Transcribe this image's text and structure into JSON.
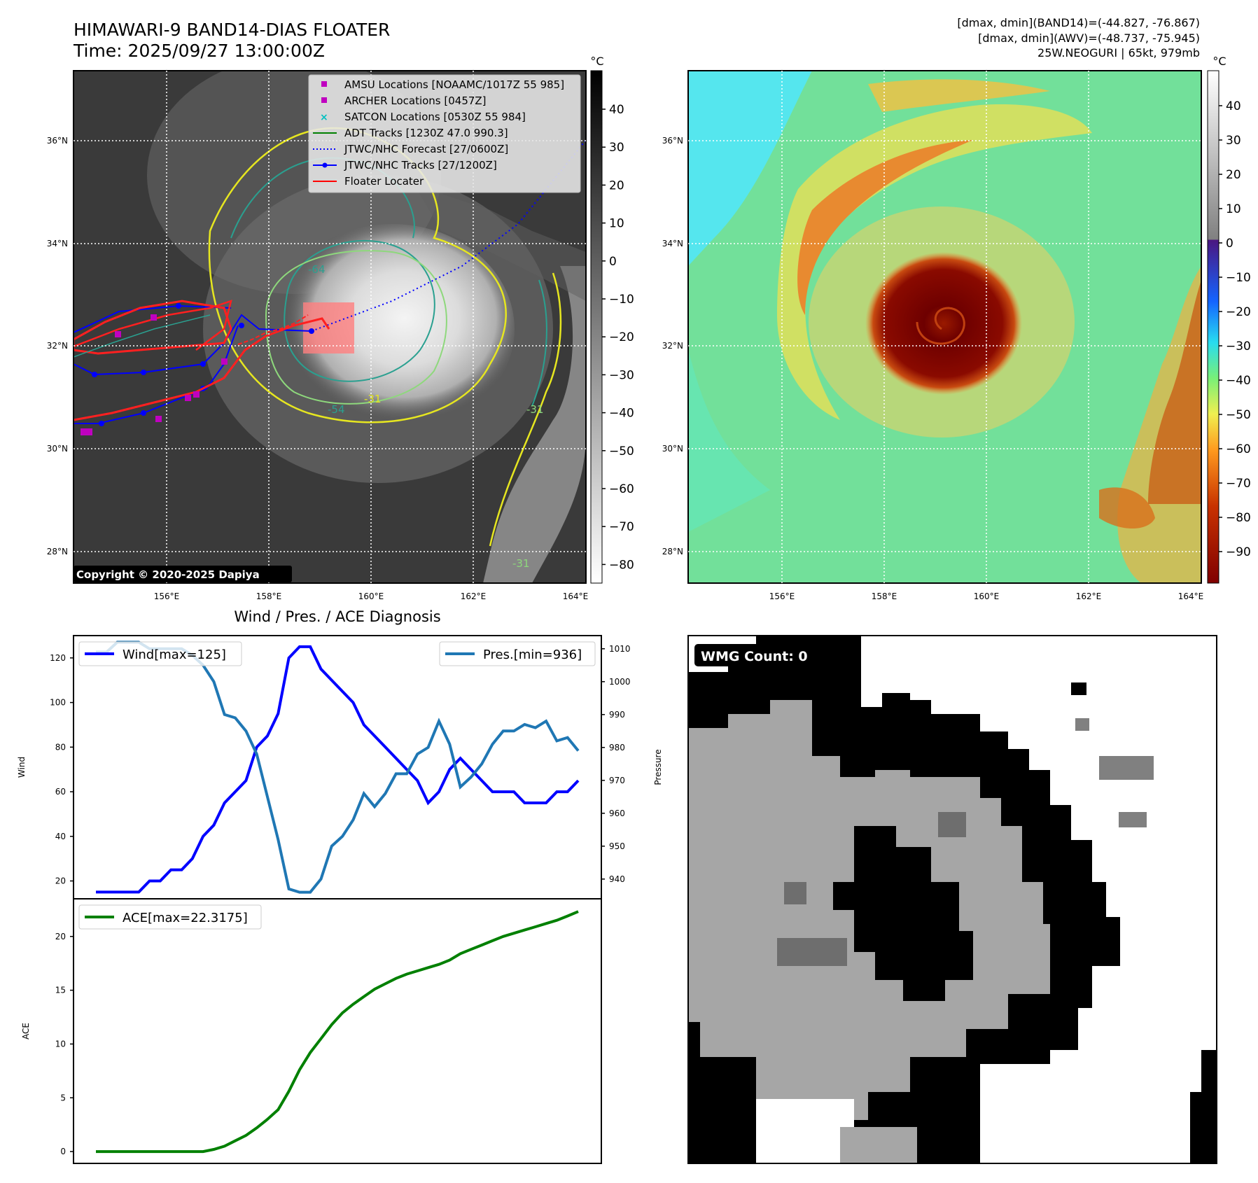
{
  "header": {
    "title": "HIMAWARI-9 BAND14-DIAS FLOATER",
    "time": "Time: 2025/09/27 13:00:00Z",
    "stats_line1": "[dmax, dmin](BAND14)=(-44.827, -76.867)",
    "stats_line2": "[dmax, dmin](AWV)=(-48.737, -75.945)",
    "stats_line3": "25W.NEOGURI | 65kt, 979mb"
  },
  "map": {
    "lon_ticks": [
      "156°E",
      "158°E",
      "160°E",
      "162°E",
      "164°E"
    ],
    "lat_ticks": [
      "36°N",
      "34°N",
      "32°N",
      "30°N",
      "28°N"
    ],
    "copyright": "Copyright © 2020-2025 Dapiya",
    "legend": [
      {
        "label": "AMSU Locations [NOAAMC/1017Z 55 985]",
        "color": "#c000c0",
        "marker": "square"
      },
      {
        "label": "ARCHER Locations [0457Z]",
        "color": "#c000c0",
        "marker": "square"
      },
      {
        "label": "SATCON Locations [0530Z 55 984]",
        "color": "#00c0c0",
        "marker": "x"
      },
      {
        "label": "ADT Tracks [1230Z 47.0 990.3]",
        "color": "#008000",
        "marker": "line"
      },
      {
        "label": "JTWC/NHC Forecast [27/0600Z]",
        "color": "#0000ff",
        "marker": "dotted"
      },
      {
        "label": "JTWC/NHC Tracks [27/1200Z]",
        "color": "#0000ff",
        "marker": "line-dot"
      },
      {
        "label": "Floater Locater",
        "color": "#ff0000",
        "marker": "line"
      }
    ],
    "contour_labels": [
      "-64",
      "-54",
      "-31",
      "-31",
      "-31"
    ]
  },
  "colorbars": {
    "unit": "°C",
    "left_ticks": [
      "40",
      "30",
      "20",
      "10",
      "0",
      "−10",
      "−20",
      "−30",
      "−40",
      "−50",
      "−60",
      "−70",
      "−80"
    ],
    "right_ticks": [
      "40",
      "30",
      "20",
      "10",
      "0",
      "−10",
      "−20",
      "−30",
      "−40",
      "−50",
      "−60",
      "−70",
      "−80",
      "−90"
    ]
  },
  "wmg": {
    "label": "WMG Count: 0"
  },
  "chart_data": [
    {
      "type": "line",
      "title": "Wind / Pres. / ACE Diagnosis",
      "ylabel": "Wind",
      "y2label": "Pressure",
      "ylim": [
        12,
        130
      ],
      "y2lim": [
        934,
        1014
      ],
      "yticks": [
        "20",
        "40",
        "60",
        "80",
        "100",
        "120"
      ],
      "y2ticks": [
        "940",
        "950",
        "960",
        "970",
        "980",
        "990",
        "1000",
        "1010"
      ],
      "series": [
        {
          "name": "Wind[max=125]",
          "color": "#0000ff",
          "values": [
            15,
            15,
            15,
            15,
            15,
            20,
            20,
            25,
            25,
            30,
            40,
            45,
            55,
            60,
            65,
            80,
            85,
            95,
            120,
            125,
            125,
            115,
            110,
            105,
            100,
            90,
            85,
            80,
            75,
            70,
            65,
            55,
            60,
            70,
            75,
            70,
            65,
            60,
            60,
            60,
            55,
            55,
            55,
            60,
            60,
            65
          ]
        },
        {
          "name": "Pres.[min=936]",
          "color": "#1f77b4",
          "values": [
            1009,
            1009,
            1012,
            1012,
            1012,
            1010,
            1010,
            1010,
            1010,
            1008,
            1005,
            1000,
            990,
            989,
            985,
            978,
            965,
            952,
            937,
            936,
            936,
            940,
            950,
            953,
            958,
            966,
            962,
            966,
            972,
            972,
            978,
            980,
            988,
            981,
            968,
            971,
            975,
            981,
            985,
            985,
            987,
            986,
            988,
            982,
            983,
            979
          ]
        }
      ]
    },
    {
      "type": "line",
      "ylabel": "ACE",
      "ylim": [
        -1.1,
        23.5
      ],
      "yticks": [
        "0",
        "5",
        "10",
        "15",
        "20"
      ],
      "series": [
        {
          "name": "ACE[max=22.3175]",
          "color": "#008000",
          "values": [
            0,
            0,
            0,
            0,
            0,
            0,
            0,
            0,
            0,
            0,
            0,
            0.2,
            0.5,
            1.0,
            1.5,
            2.2,
            3.0,
            3.9,
            5.6,
            7.6,
            9.2,
            10.5,
            11.8,
            12.9,
            13.7,
            14.4,
            15.1,
            15.6,
            16.1,
            16.5,
            16.8,
            17.1,
            17.4,
            17.8,
            18.4,
            18.8,
            19.2,
            19.6,
            20.0,
            20.3,
            20.6,
            20.9,
            21.2,
            21.5,
            21.9,
            22.3175
          ]
        }
      ]
    }
  ]
}
